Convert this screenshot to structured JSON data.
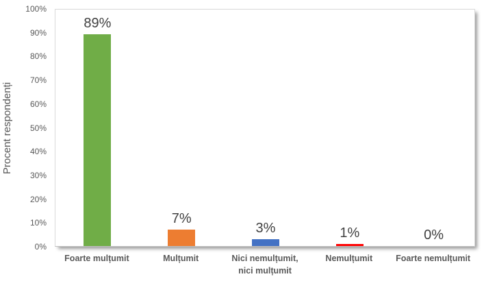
{
  "chart_data": {
    "type": "bar",
    "categories": [
      "Foarte mulțumit",
      "Mulțumit",
      "Nici nemulțumit,\nnici mulțumit",
      "Nemulțumit",
      "Foarte nemulțumit"
    ],
    "values": [
      89,
      7,
      3,
      1,
      0
    ],
    "data_labels": [
      "89%",
      "7%",
      "3%",
      "1%",
      "0%"
    ],
    "bar_colors": [
      "#70AD47",
      "#ED7D31",
      "#4472C4",
      "#FF0000",
      null
    ],
    "title": "",
    "xlabel": "",
    "ylabel": "Procent respondenți",
    "ylim": [
      0,
      100
    ],
    "ytick_step": 10,
    "ytick_labels": [
      "0%",
      "10%",
      "20%",
      "30%",
      "40%",
      "50%",
      "60%",
      "70%",
      "80%",
      "90%",
      "100%"
    ],
    "grid": false,
    "legend": "none"
  },
  "style": {
    "axis_text_color": "#595959",
    "data_label_color": "#404040",
    "plot_border_color": "#d9d9d9",
    "background": "#ffffff"
  }
}
